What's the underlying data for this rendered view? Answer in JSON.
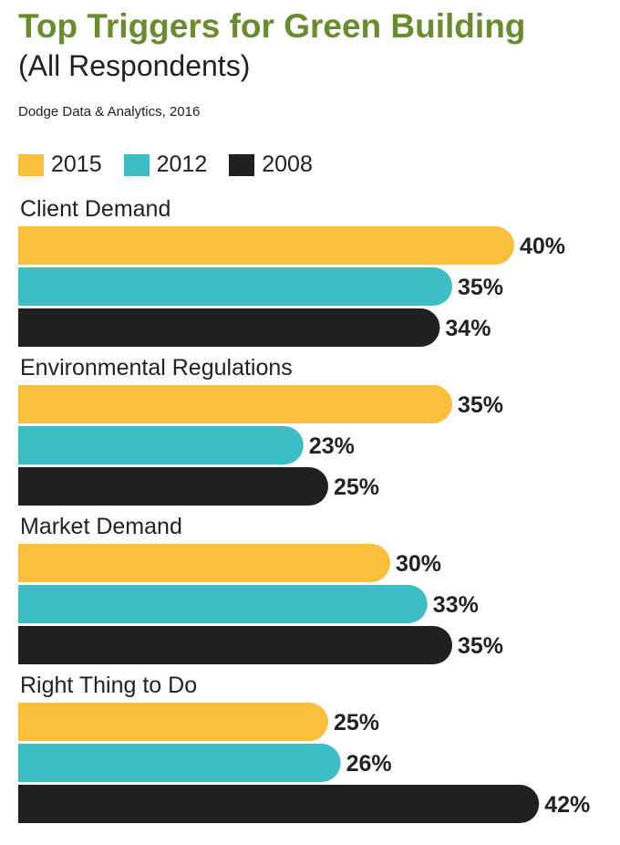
{
  "header": {
    "title": "Top Triggers for Green Building",
    "subtitle": "(All Respondents)",
    "source": "Dodge Data & Analytics, 2016"
  },
  "legend": {
    "items": [
      {
        "label": "2015",
        "color": "#fbbf3b"
      },
      {
        "label": "2012",
        "color": "#3dbdc6"
      },
      {
        "label": "2008",
        "color": "#221f20"
      }
    ]
  },
  "chart_data": {
    "type": "bar",
    "orientation": "horizontal",
    "categories": [
      "Client Demand",
      "Environmental Regulations",
      "Market Demand",
      "Right Thing to Do"
    ],
    "series": [
      {
        "name": "2015",
        "color": "#fbbf3b",
        "values": [
          40,
          35,
          30,
          25
        ],
        "labels": [
          "40%",
          "35%",
          "30%",
          "25%"
        ]
      },
      {
        "name": "2012",
        "color": "#3dbdc6",
        "values": [
          35,
          23,
          33,
          26
        ],
        "labels": [
          "35%",
          "23%",
          "33%",
          "26%"
        ]
      },
      {
        "name": "2008",
        "color": "#221f20",
        "values": [
          34,
          25,
          35,
          42
        ],
        "labels": [
          "34%",
          "25%",
          "35%",
          "42%"
        ]
      }
    ],
    "title": "Top Triggers for Green Building",
    "xlabel": "",
    "ylabel": "",
    "xlim": [
      0,
      45
    ],
    "grid": false,
    "legend_position": "top-left"
  }
}
